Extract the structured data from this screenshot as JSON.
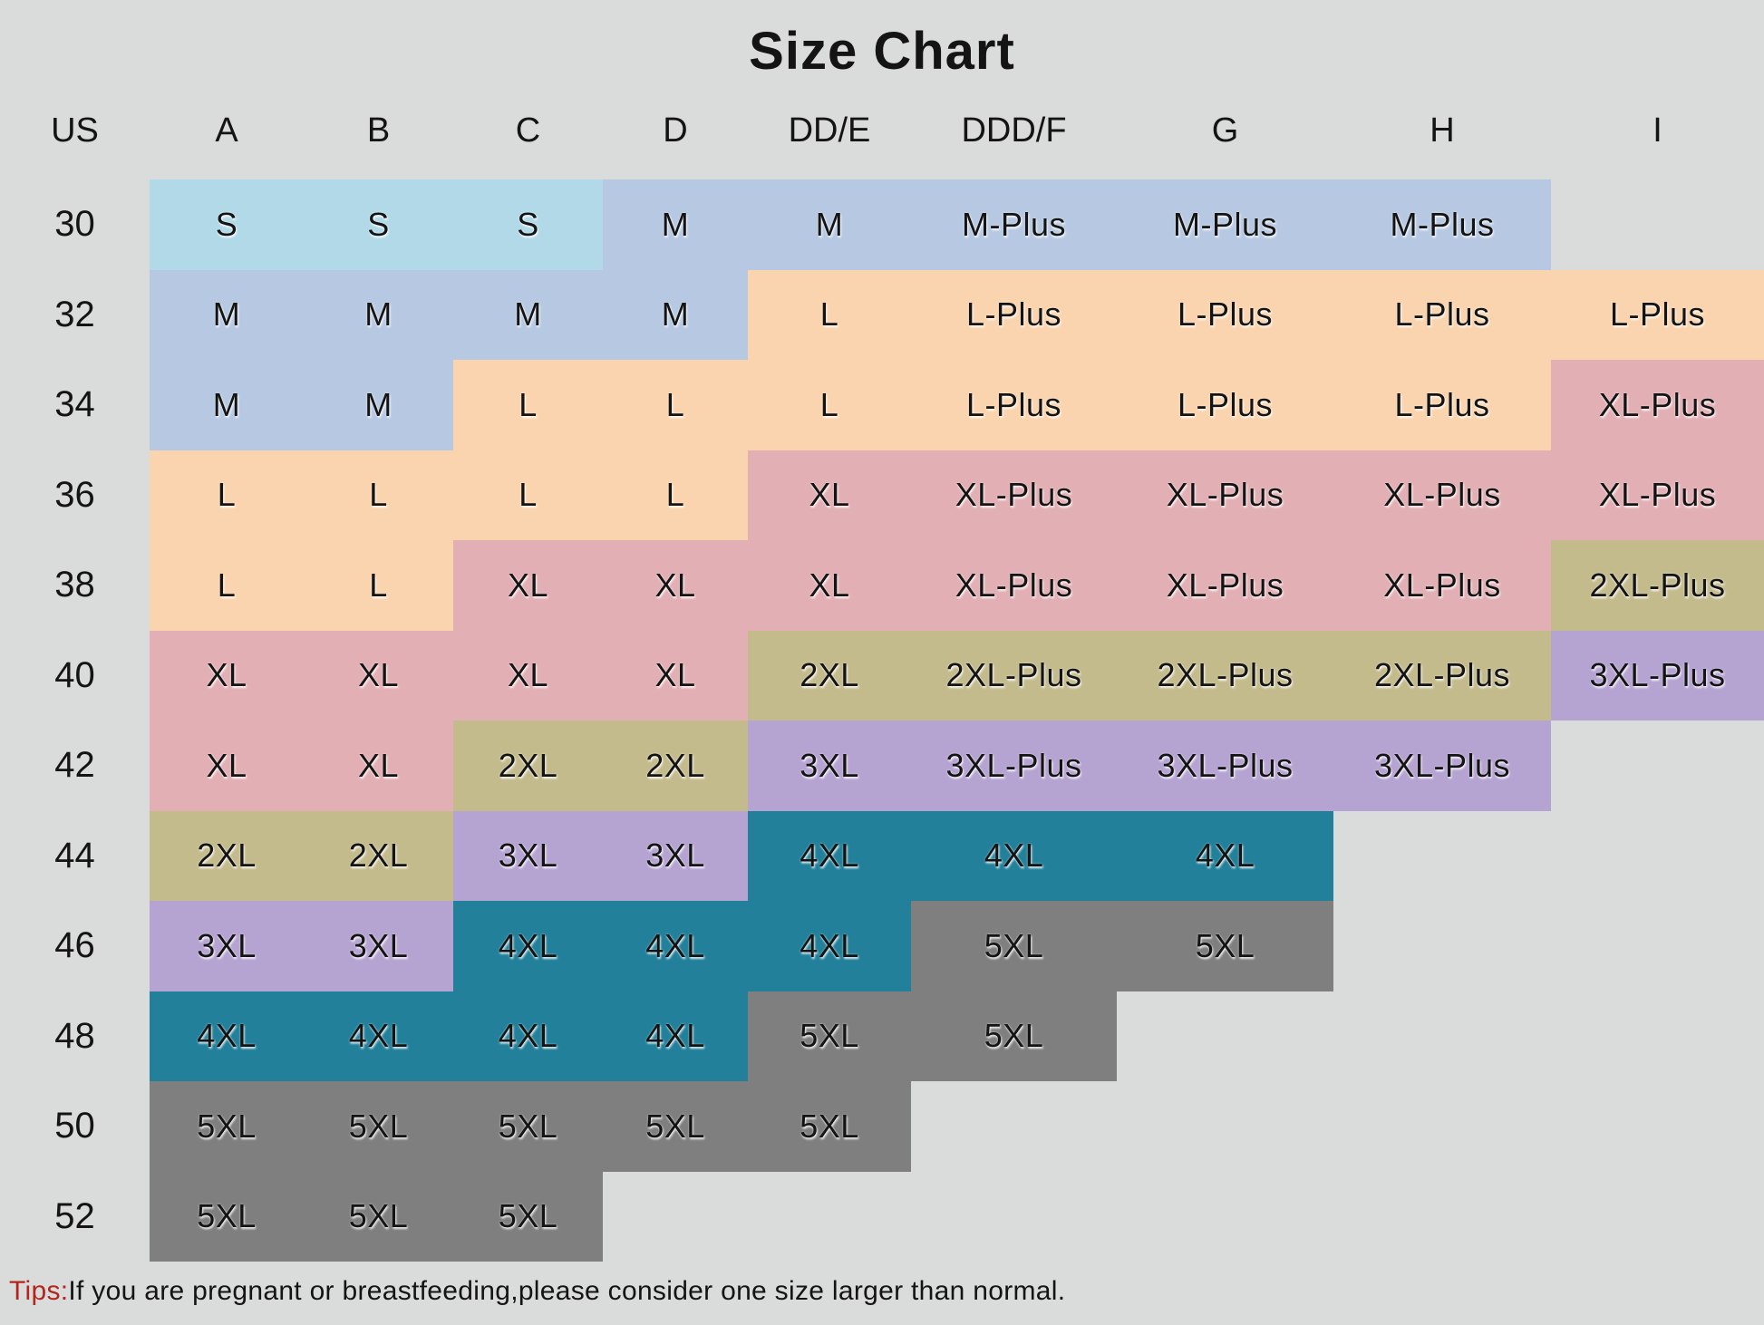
{
  "title": "Size Chart",
  "tips": {
    "label": "Tips:",
    "text": "If you are pregnant or breastfeeding,please consider one size larger than normal."
  },
  "page_colors": {
    "background": "#dadcdb",
    "text": "#141414",
    "tips_red": "#b2261e"
  },
  "chart_data": {
    "type": "table",
    "title": "Size Chart",
    "columns": [
      "US",
      "A",
      "B",
      "C",
      "D",
      "DD/E",
      "DDD/F",
      "G",
      "H",
      "I"
    ],
    "rows": [
      {
        "us": "30",
        "cells": [
          "S",
          "S",
          "S",
          "M",
          "M",
          "M-Plus",
          "M-Plus",
          "M-Plus",
          ""
        ]
      },
      {
        "us": "32",
        "cells": [
          "M",
          "M",
          "M",
          "M",
          "L",
          "L-Plus",
          "L-Plus",
          "L-Plus",
          "L-Plus"
        ]
      },
      {
        "us": "34",
        "cells": [
          "M",
          "M",
          "L",
          "L",
          "L",
          "L-Plus",
          "L-Plus",
          "L-Plus",
          "XL-Plus"
        ]
      },
      {
        "us": "36",
        "cells": [
          "L",
          "L",
          "L",
          "L",
          "XL",
          "XL-Plus",
          "XL-Plus",
          "XL-Plus",
          "XL-Plus"
        ]
      },
      {
        "us": "38",
        "cells": [
          "L",
          "L",
          "XL",
          "XL",
          "XL",
          "XL-Plus",
          "XL-Plus",
          "XL-Plus",
          "2XL-Plus"
        ]
      },
      {
        "us": "40",
        "cells": [
          "XL",
          "XL",
          "XL",
          "XL",
          "2XL",
          "2XL-Plus",
          "2XL-Plus",
          "2XL-Plus",
          "3XL-Plus"
        ]
      },
      {
        "us": "42",
        "cells": [
          "XL",
          "XL",
          "2XL",
          "2XL",
          "3XL",
          "3XL-Plus",
          "3XL-Plus",
          "3XL-Plus",
          ""
        ]
      },
      {
        "us": "44",
        "cells": [
          "2XL",
          "2XL",
          "3XL",
          "3XL",
          "4XL",
          "4XL",
          "4XL",
          "",
          ""
        ]
      },
      {
        "us": "46",
        "cells": [
          "3XL",
          "3XL",
          "4XL",
          "4XL",
          "4XL",
          "5XL",
          "5XL",
          "",
          ""
        ]
      },
      {
        "us": "48",
        "cells": [
          "4XL",
          "4XL",
          "4XL",
          "4XL",
          "5XL",
          "5XL",
          "",
          "",
          ""
        ]
      },
      {
        "us": "50",
        "cells": [
          "5XL",
          "5XL",
          "5XL",
          "5XL",
          "5XL",
          "",
          "",
          "",
          ""
        ]
      },
      {
        "us": "52",
        "cells": [
          "5XL",
          "5XL",
          "5XL",
          "",
          "",
          "",
          "",
          "",
          ""
        ]
      }
    ],
    "color_legend": {
      "S": "#b2d9e7",
      "M": "#b7c9e2",
      "L": "#fad4ae",
      "XL": "#e2afb4",
      "2XL": "#c4bb8d",
      "3XL": "#b5a3d1",
      "4XL": "#22809b",
      "5XL": "#7f7f7f"
    }
  }
}
